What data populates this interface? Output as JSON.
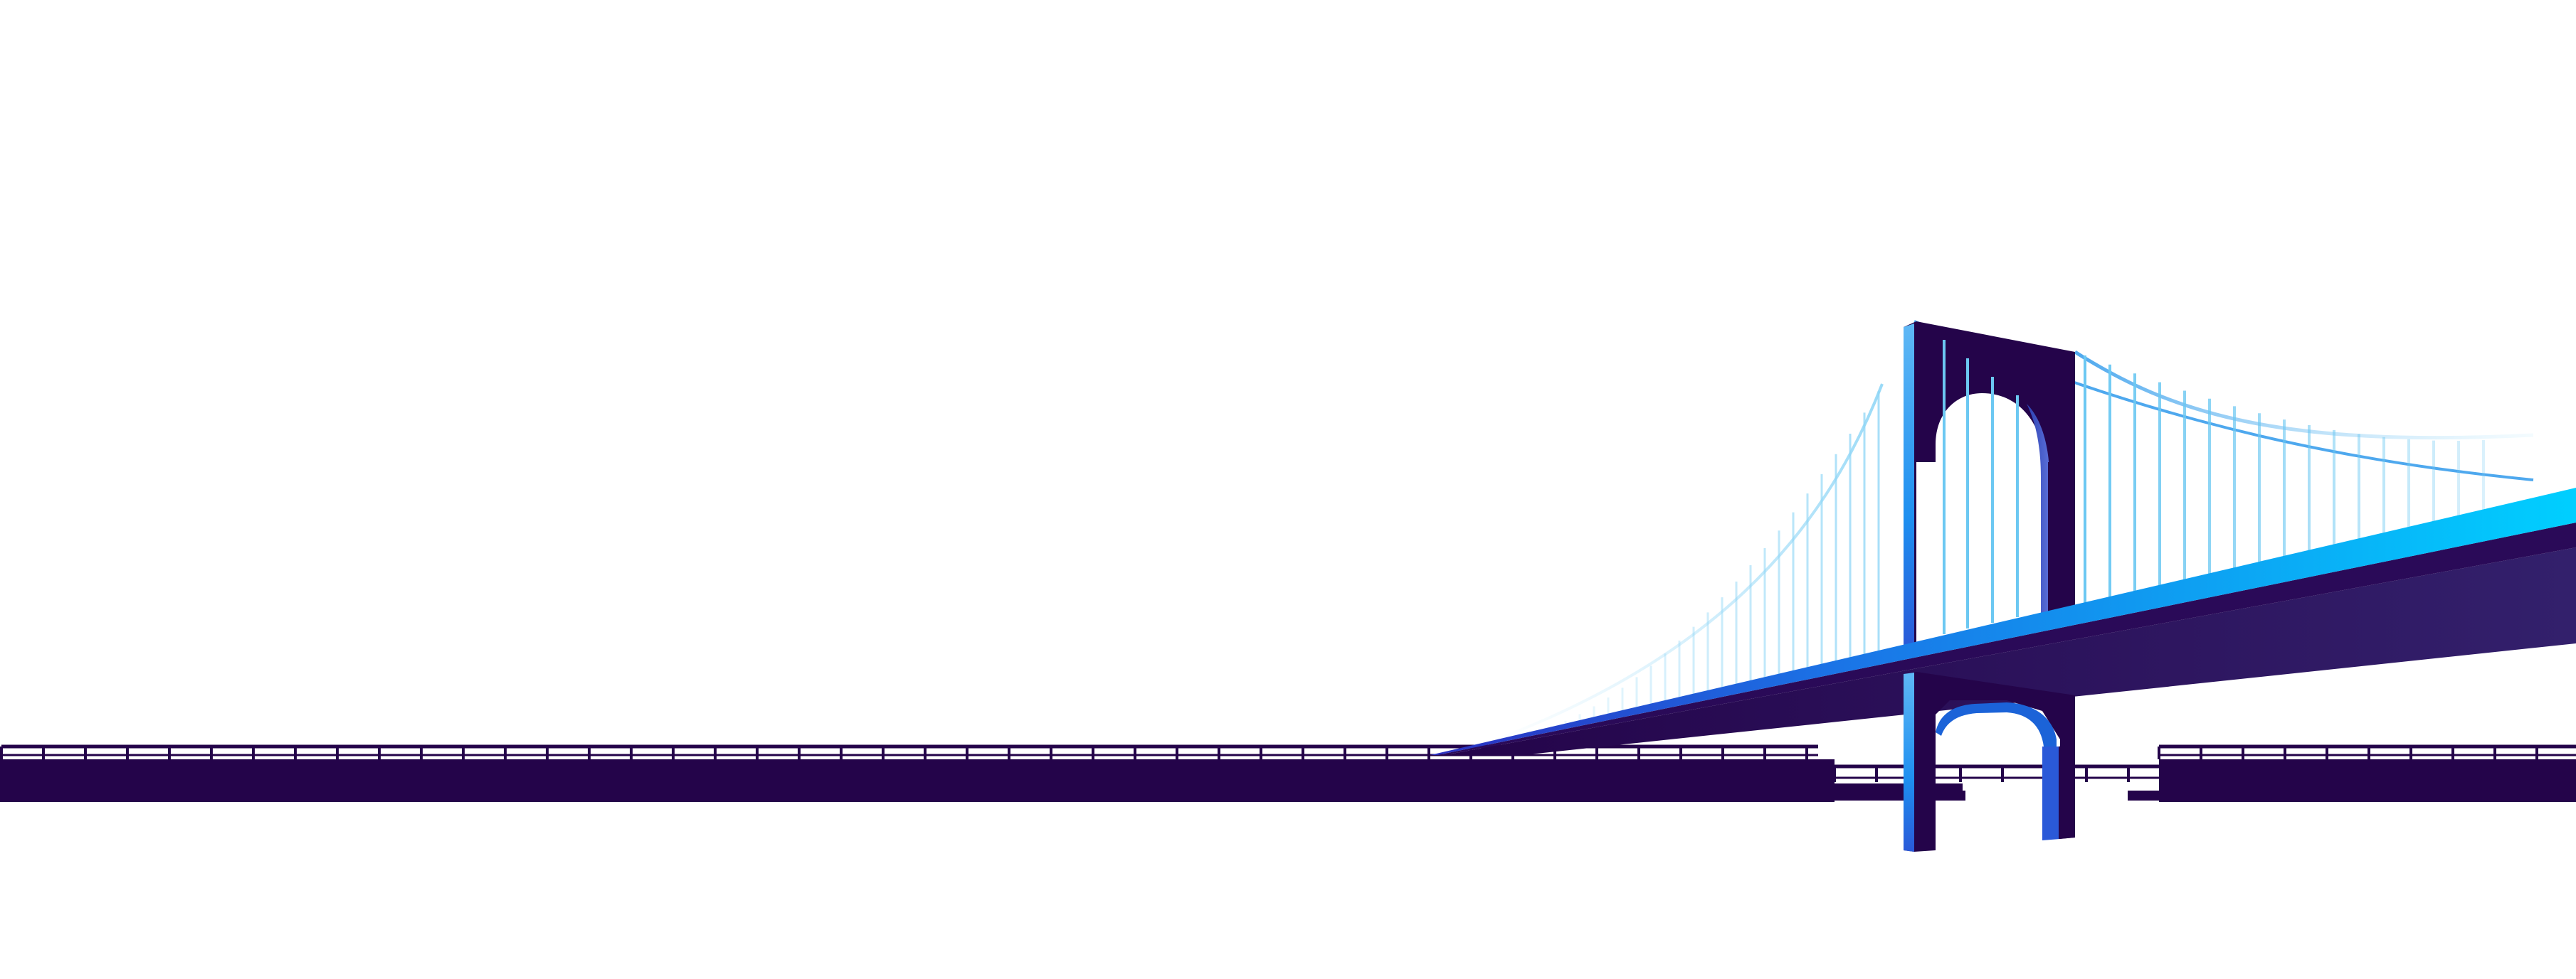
{
  "illustration": {
    "subject": "suspension-bridge",
    "colors": {
      "background": "#ffffff",
      "deep_purple": "#24044a",
      "mid_purple": "#2f1562",
      "cyan": "#00cfff",
      "blue": "#1b73e6",
      "cable_light": "#6cc8f2"
    }
  }
}
